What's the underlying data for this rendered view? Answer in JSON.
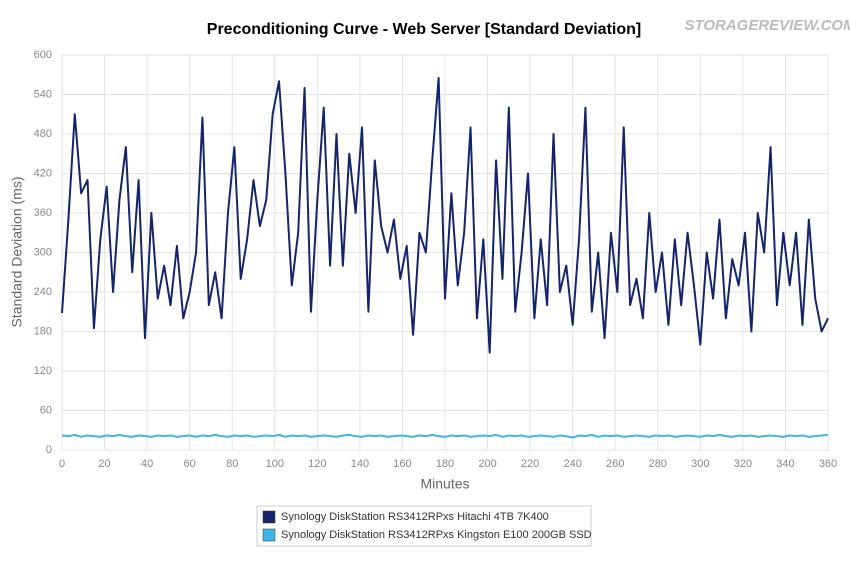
{
  "chart_data": {
    "type": "line",
    "title": "Preconditioning Curve - Web Server [Standard Deviation]",
    "watermark": "STORAGEREVIEW.COM",
    "x_label": "Minutes",
    "y_label": "Standard Deviation (ms)",
    "x": [
      0,
      3,
      6,
      9,
      12,
      15,
      18,
      21,
      24,
      27,
      30,
      33,
      36,
      39,
      42,
      45,
      48,
      51,
      54,
      57,
      60,
      63,
      66,
      69,
      72,
      75,
      78,
      81,
      84,
      87,
      90,
      93,
      96,
      99,
      102,
      105,
      108,
      111,
      114,
      117,
      120,
      123,
      126,
      129,
      132,
      135,
      138,
      141,
      144,
      147,
      150,
      153,
      156,
      159,
      162,
      165,
      168,
      171,
      174,
      177,
      180,
      183,
      186,
      189,
      192,
      195,
      198,
      201,
      204,
      207,
      210,
      213,
      216,
      219,
      222,
      225,
      228,
      231,
      234,
      237,
      240,
      243,
      246,
      249,
      252,
      255,
      258,
      261,
      264,
      267,
      270,
      273,
      276,
      279,
      282,
      285,
      288,
      291,
      294,
      297,
      300,
      303,
      306,
      309,
      312,
      315,
      318,
      321,
      324,
      327,
      330,
      333,
      336,
      339,
      342,
      345,
      348,
      351,
      354,
      357,
      360
    ],
    "series": [
      {
        "name": "Synology DiskStation RS3412RPxs Hitachi 4TB 7K400",
        "color": "#15246b",
        "values": [
          208,
          350,
          510,
          390,
          410,
          185,
          320,
          400,
          240,
          380,
          460,
          270,
          410,
          170,
          360,
          230,
          280,
          220,
          310,
          200,
          240,
          300,
          505,
          220,
          270,
          200,
          360,
          460,
          260,
          320,
          410,
          340,
          380,
          510,
          560,
          420,
          250,
          330,
          550,
          210,
          380,
          520,
          280,
          480,
          280,
          450,
          360,
          490,
          210,
          440,
          340,
          300,
          350,
          260,
          310,
          175,
          330,
          300,
          440,
          565,
          230,
          390,
          250,
          330,
          490,
          200,
          320,
          148,
          440,
          260,
          520,
          210,
          300,
          420,
          200,
          320,
          220,
          480,
          240,
          280,
          190,
          320,
          520,
          210,
          300,
          170,
          330,
          240,
          490,
          220,
          260,
          200,
          360,
          240,
          300,
          190,
          320,
          220,
          330,
          250,
          160,
          300,
          230,
          350,
          200,
          290,
          250,
          330,
          180,
          360,
          300,
          460,
          220,
          330,
          250,
          330,
          190,
          350,
          230,
          180,
          200
        ]
      },
      {
        "name": "Synology DiskStation RS3412RPxs Kingston E100 200GB SSD",
        "color": "#3db5e6",
        "values": [
          22,
          21,
          23,
          20,
          22,
          21,
          20,
          22,
          21,
          23,
          21,
          20,
          22,
          21,
          20,
          22,
          21,
          22,
          20,
          21,
          22,
          20,
          22,
          21,
          23,
          21,
          20,
          22,
          21,
          22,
          20,
          21,
          22,
          21,
          23,
          20,
          22,
          21,
          22,
          20,
          21,
          22,
          21,
          20,
          22,
          23,
          21,
          20,
          22,
          21,
          22,
          20,
          21,
          22,
          21,
          20,
          22,
          21,
          23,
          21,
          20,
          22,
          21,
          22,
          20,
          21,
          22,
          21,
          23,
          20,
          22,
          21,
          22,
          20,
          21,
          22,
          21,
          20,
          22,
          21,
          19,
          22,
          21,
          23,
          20,
          22,
          21,
          22,
          20,
          21,
          22,
          21,
          20,
          22,
          21,
          22,
          20,
          21,
          22,
          21,
          20,
          22,
          21,
          23,
          21,
          20,
          22,
          21,
          22,
          20,
          21,
          22,
          21,
          20,
          22,
          21,
          22,
          20,
          21,
          22,
          23
        ]
      }
    ],
    "xlim": [
      0,
      360
    ],
    "xticks": [
      0,
      20,
      40,
      60,
      80,
      100,
      120,
      140,
      160,
      180,
      200,
      220,
      240,
      260,
      280,
      300,
      320,
      340,
      360
    ],
    "ylim": [
      0,
      600
    ],
    "yticks": [
      0,
      60,
      120,
      180,
      240,
      300,
      360,
      420,
      480,
      540,
      600
    ],
    "grid": true,
    "legend": "bottom"
  }
}
